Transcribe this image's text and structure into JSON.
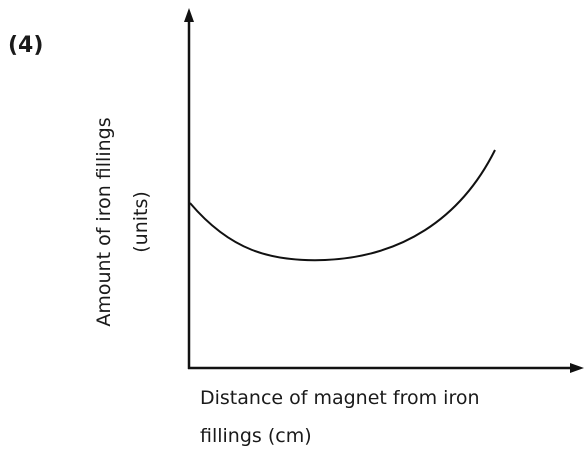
{
  "label": "(4)",
  "y_axis_label": [
    "Amount of iron fillings",
    "(units)"
  ],
  "x_axis_label": [
    "Distance of magnet from iron",
    "fillings (cm)"
  ]
}
